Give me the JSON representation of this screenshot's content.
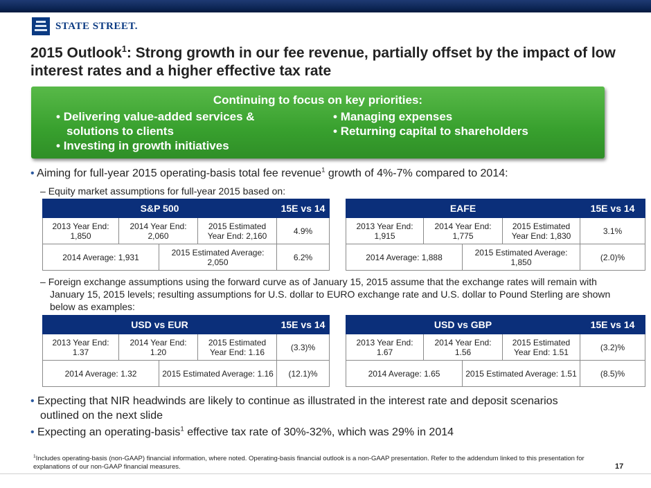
{
  "logo": {
    "name": "State Street",
    "text": "STATE STREET."
  },
  "title": {
    "part1": "2015 Outlook",
    "sup": "1",
    "part2": ": Strong growth in our fee revenue, partially offset by the impact of low interest rates and a higher effective tax rate"
  },
  "priorities": {
    "title": "Continuing to focus on key priorities:",
    "left": [
      "Delivering value-added services & solutions to clients",
      "Investing in growth initiatives"
    ],
    "right": [
      "Managing expenses",
      "Returning capital to shareholders"
    ]
  },
  "bullets": {
    "b1_a": "Aiming for full-year 2015 operating-basis total fee revenue",
    "b1_sup": "1",
    "b1_b": " growth of 4%-7% compared to 2014:",
    "sub1": "Equity market assumptions for full-year 2015 based on:",
    "sub2": "Foreign exchange assumptions using the forward curve as of January 15, 2015 assume that the exchange rates will remain with January 15, 2015 levels; resulting assumptions for U.S. dollar to EURO exchange rate and U.S. dollar to Pound Sterling are shown below as examples:",
    "b2": "Expecting that NIR headwinds are likely to continue as illustrated in the interest rate and deposit scenarios outlined on the next slide",
    "b3_a": "Expecting an operating-basis",
    "b3_sup": "1",
    "b3_b": " effective tax rate of 30%-32%, which was 29% in 2014"
  },
  "tables": {
    "sp500": {
      "name": "S&P 500",
      "vs": "15E vs 14",
      "r1": [
        "2013 Year End: 1,850",
        "2014 Year End: 2,060",
        "2015 Estimated Year End: 2,160"
      ],
      "r1v": "4.9%",
      "r2": [
        "2014 Average: 1,931",
        "2015 Estimated Average: 2,050"
      ],
      "r2v": "6.2%"
    },
    "eafe": {
      "name": "EAFE",
      "vs": "15E vs 14",
      "r1": [
        "2013 Year End: 1,915",
        "2014 Year End: 1,775",
        "2015 Estimated Year End: 1,830"
      ],
      "r1v": "3.1%",
      "r2": [
        "2014 Average: 1,888",
        "2015 Estimated Average: 1,850"
      ],
      "r2v": "(2.0)%"
    },
    "usdeur": {
      "name": "USD vs EUR",
      "vs": "15E vs 14",
      "r1": [
        "2013 Year End: 1.37",
        "2014 Year End: 1.20",
        "2015 Estimated Year End: 1.16"
      ],
      "r1v": "(3.3)%",
      "r2": [
        "2014 Average: 1.32",
        "2015 Estimated Average: 1.16"
      ],
      "r2v": "(12.1)%"
    },
    "usdgbp": {
      "name": "USD vs GBP",
      "vs": "15E vs 14",
      "r1": [
        "2013 Year End: 1.67",
        "2014 Year End: 1.56",
        "2015 Estimated Year End: 1.51"
      ],
      "r1v": "(3.2)%",
      "r2": [
        "2014 Average: 1.65",
        "2015 Estimated Average: 1.51"
      ],
      "r2v": "(8.5)%"
    }
  },
  "footnote": {
    "sup": "1",
    "text": "Includes operating-basis (non-GAAP) financial information, where noted.  Operating-basis financial outlook is a non-GAAP presentation.  Refer to the addendum linked to this presentation for explanations of our non-GAAP financial measures."
  },
  "page_number": "17"
}
